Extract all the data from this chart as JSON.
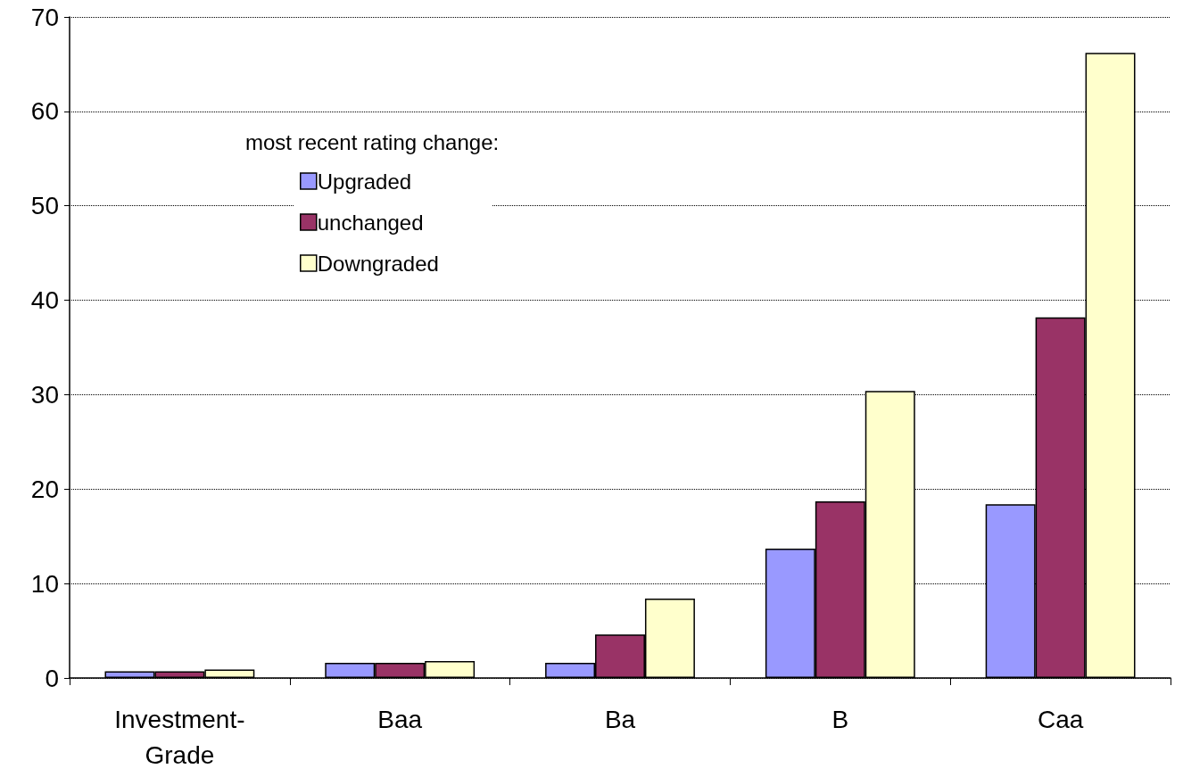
{
  "chart_data": {
    "type": "bar",
    "legend_title": "most recent rating change:",
    "categories": [
      "Investment-\nGrade",
      "Baa",
      "Ba",
      "B",
      "Caa"
    ],
    "series": [
      {
        "name": "Upgraded",
        "color": "#9999ff",
        "values": [
          0.7,
          1.6,
          1.6,
          13.7,
          18.4
        ]
      },
      {
        "name": "unchanged",
        "color": "#993366",
        "values": [
          0.7,
          1.6,
          4.6,
          18.7,
          38.2
        ]
      },
      {
        "name": "Downgraded",
        "color": "#ffffcc",
        "values": [
          0.9,
          1.8,
          8.4,
          30.4,
          66.2
        ]
      }
    ],
    "ylim": [
      0,
      70
    ],
    "yticks": [
      0,
      10,
      20,
      30,
      40,
      50,
      60,
      70
    ],
    "grid": "y",
    "legend": "top left"
  }
}
